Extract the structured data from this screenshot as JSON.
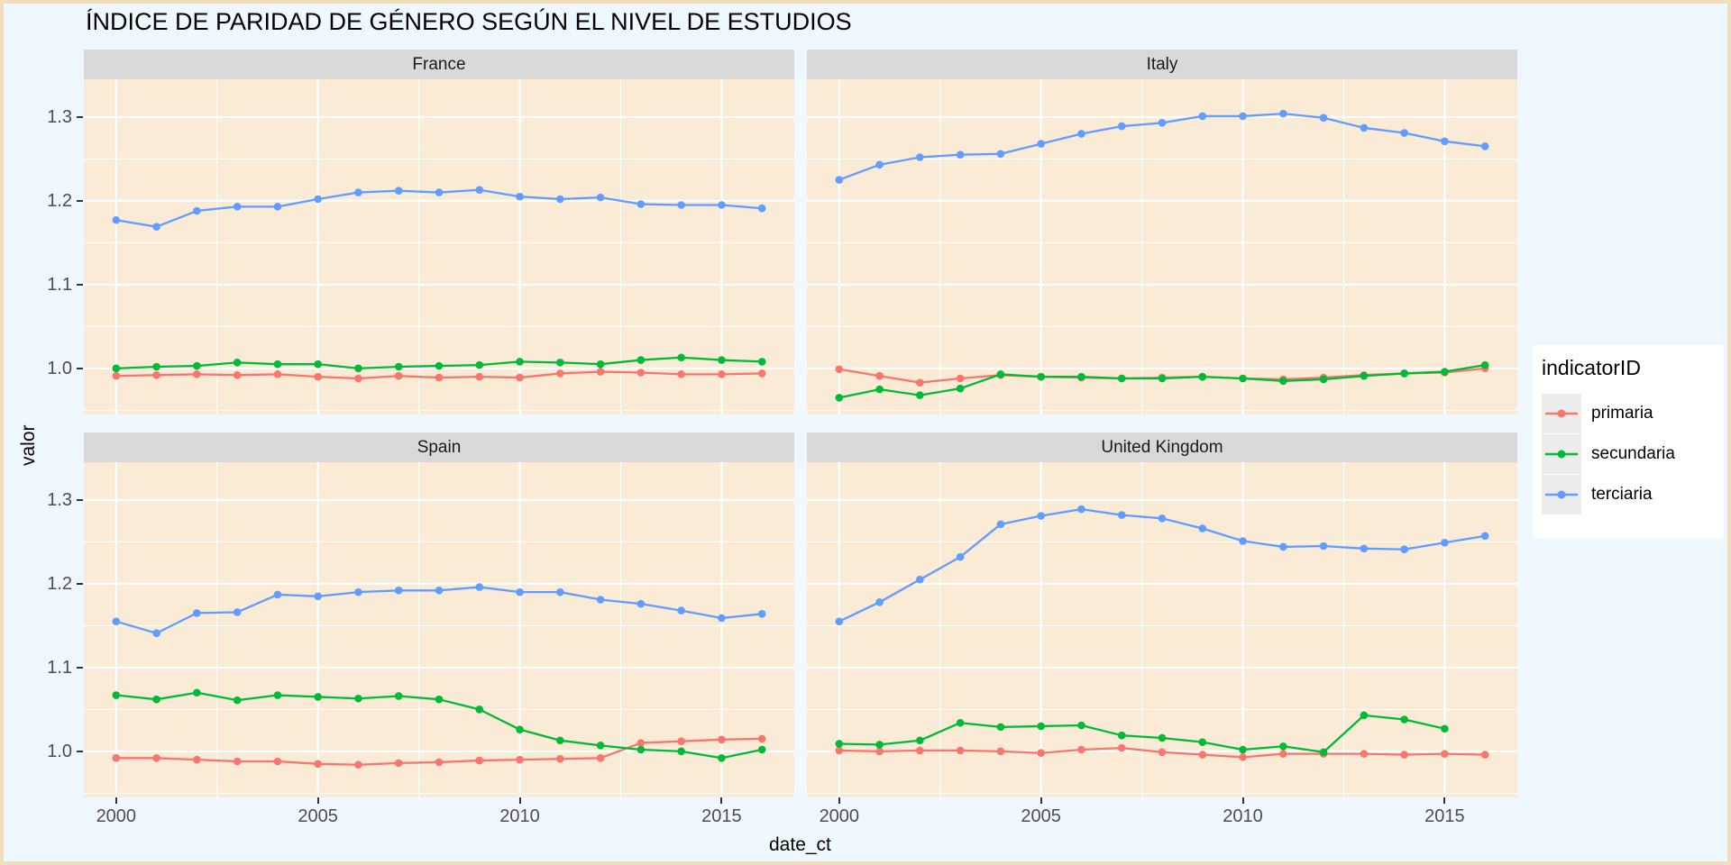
{
  "chart_data": {
    "type": "line",
    "title": "ÍNDICE DE PARIDAD DE GÉNERO SEGÚN EL NIVEL DE ESTUDIOS",
    "xlabel": "date_ct",
    "ylabel": "valor",
    "legend_title": "indicatorID",
    "legend_position": "right",
    "grid": true,
    "x": [
      2000,
      2001,
      2002,
      2003,
      2004,
      2005,
      2006,
      2007,
      2008,
      2009,
      2010,
      2011,
      2012,
      2013,
      2014,
      2015,
      2016
    ],
    "x_ticks": {
      "values": [
        2000,
        2005,
        2010,
        2015
      ],
      "labels": [
        "2000",
        "2005",
        "2010",
        "2015"
      ]
    },
    "x_minor": [
      2002.5,
      2007.5,
      2012.5
    ],
    "y_ticks": {
      "values": [
        1.0,
        1.1,
        1.2,
        1.3
      ],
      "labels": [
        "1.0",
        "1.1",
        "1.2",
        "1.3"
      ]
    },
    "y_minor": [
      0.95,
      1.05,
      1.15,
      1.25
    ],
    "xlim": [
      1999.2,
      2016.8
    ],
    "ylim": [
      0.945,
      1.345
    ],
    "colors": {
      "primaria": "#F8766D",
      "secundaria": "#00BA38",
      "terciaria": "#619CFF",
      "panel_bg": "#FAEBD7",
      "page_bg": "#F0F8FF",
      "strip_bg": "#D9D9D9",
      "grid": "#FFFFFF",
      "axis_text": "#4D4D4D",
      "outer_border": "#F2DEBD"
    },
    "legend_items": [
      {
        "label": "primaria",
        "color": "#F8766D"
      },
      {
        "label": "secundaria",
        "color": "#00BA38"
      },
      {
        "label": "terciaria",
        "color": "#619CFF"
      }
    ],
    "facets": [
      {
        "label": "France",
        "series": [
          {
            "name": "primaria",
            "color": "#F8766D",
            "values": [
              0.991,
              0.992,
              0.993,
              0.992,
              0.993,
              0.99,
              0.988,
              0.991,
              0.989,
              0.99,
              0.989,
              0.994,
              0.996,
              0.995,
              0.993,
              0.993,
              0.994
            ]
          },
          {
            "name": "secundaria",
            "color": "#00BA38",
            "values": [
              1.0,
              1.002,
              1.003,
              1.007,
              1.005,
              1.005,
              1.0,
              1.002,
              1.003,
              1.004,
              1.008,
              1.007,
              1.005,
              1.01,
              1.013,
              1.01,
              1.008
            ]
          },
          {
            "name": "terciaria",
            "color": "#619CFF",
            "values": [
              1.177,
              1.169,
              1.188,
              1.193,
              1.193,
              1.202,
              1.21,
              1.212,
              1.21,
              1.213,
              1.205,
              1.202,
              1.204,
              1.196,
              1.195,
              1.195,
              1.191
            ]
          }
        ]
      },
      {
        "label": "Italy",
        "series": [
          {
            "name": "primaria",
            "color": "#F8766D",
            "values": [
              0.999,
              0.991,
              0.983,
              0.988,
              0.992,
              0.99,
              0.989,
              0.988,
              0.989,
              0.99,
              0.988,
              0.987,
              0.989,
              0.992,
              0.994,
              0.995,
              1.0
            ]
          },
          {
            "name": "secundaria",
            "color": "#00BA38",
            "values": [
              0.965,
              0.975,
              0.968,
              0.976,
              0.993,
              0.99,
              0.99,
              0.988,
              0.988,
              0.99,
              0.988,
              0.985,
              0.987,
              0.991,
              0.994,
              0.996,
              1.004
            ]
          },
          {
            "name": "terciaria",
            "color": "#619CFF",
            "values": [
              1.225,
              1.243,
              1.252,
              1.255,
              1.256,
              1.268,
              1.28,
              1.289,
              1.293,
              1.301,
              1.301,
              1.304,
              1.299,
              1.287,
              1.281,
              1.271,
              1.265
            ]
          }
        ]
      },
      {
        "label": "Spain",
        "series": [
          {
            "name": "primaria",
            "color": "#F8766D",
            "values": [
              0.992,
              0.992,
              0.99,
              0.988,
              0.988,
              0.985,
              0.984,
              0.986,
              0.987,
              0.989,
              0.99,
              0.991,
              0.992,
              1.01,
              1.012,
              1.014,
              1.015
            ]
          },
          {
            "name": "secundaria",
            "color": "#00BA38",
            "values": [
              1.067,
              1.062,
              1.07,
              1.061,
              1.067,
              1.065,
              1.063,
              1.066,
              1.062,
              1.05,
              1.026,
              1.013,
              1.007,
              1.002,
              1.0,
              0.992,
              1.002
            ]
          },
          {
            "name": "terciaria",
            "color": "#619CFF",
            "values": [
              1.155,
              1.141,
              1.165,
              1.166,
              1.187,
              1.185,
              1.19,
              1.192,
              1.192,
              1.196,
              1.19,
              1.19,
              1.181,
              1.176,
              1.168,
              1.159,
              1.164
            ]
          }
        ]
      },
      {
        "label": "United Kingdom",
        "series": [
          {
            "name": "primaria",
            "color": "#F8766D",
            "values": [
              1.001,
              1.0,
              1.001,
              1.001,
              1.0,
              0.998,
              1.002,
              1.004,
              0.999,
              0.996,
              0.993,
              0.997,
              0.997,
              0.997,
              0.996,
              0.997,
              0.996
            ]
          },
          {
            "name": "secundaria",
            "color": "#00BA38",
            "values": [
              1.009,
              1.008,
              1.013,
              1.034,
              1.029,
              1.03,
              1.031,
              1.019,
              1.016,
              1.011,
              1.002,
              1.006,
              0.999,
              1.043,
              1.038,
              1.027,
              null
            ]
          },
          {
            "name": "terciaria",
            "color": "#619CFF",
            "values": [
              1.155,
              1.178,
              1.205,
              1.232,
              1.271,
              1.281,
              1.289,
              1.282,
              1.278,
              1.266,
              1.251,
              1.244,
              1.245,
              1.242,
              1.241,
              1.249,
              1.257
            ]
          }
        ]
      }
    ]
  }
}
